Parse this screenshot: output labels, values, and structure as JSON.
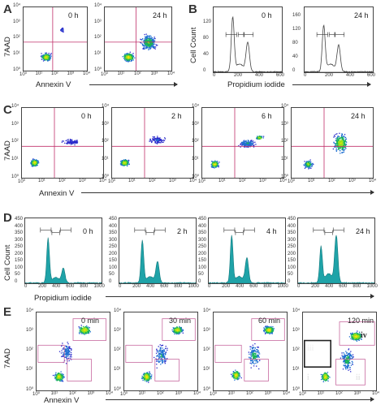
{
  "panels": {
    "A": {
      "letter": "A",
      "ylabel": "7AAD",
      "xlabel": "Annexin V",
      "plots": [
        {
          "time": "0 h"
        },
        {
          "time": "24 h"
        }
      ]
    },
    "B": {
      "letter": "B",
      "ylabel": "Cell Count",
      "xlabel": "Propidium iodide",
      "plots": [
        {
          "time": "0 h",
          "yticks": [
            "0",
            "40",
            "80",
            "120"
          ],
          "xticks": [
            "0",
            "200",
            "400",
            "600"
          ]
        },
        {
          "time": "24 h",
          "yticks": [
            "0",
            "40",
            "80",
            "120",
            "160"
          ],
          "xticks": [
            "0",
            "200",
            "400",
            "600"
          ]
        }
      ]
    },
    "C": {
      "letter": "C",
      "ylabel": "7AAD",
      "xlabel": "Annexin V",
      "plots": [
        {
          "time": "0 h"
        },
        {
          "time": "2 h"
        },
        {
          "time": "6 h"
        },
        {
          "time": "24 h"
        }
      ]
    },
    "D": {
      "letter": "D",
      "ylabel": "Cell Count",
      "xlabel": "Propidium iodide",
      "yticks": [
        "0",
        "50",
        "100",
        "150",
        "200",
        "250",
        "300",
        "350",
        "400",
        "450"
      ],
      "xticks": [
        "0",
        "200",
        "400",
        "600",
        "800",
        "1000"
      ],
      "plots": [
        {
          "time": "0 h"
        },
        {
          "time": "2 h"
        },
        {
          "time": "4 h"
        },
        {
          "time": "24 h"
        }
      ]
    },
    "E": {
      "letter": "E",
      "ylabel": "7AAD",
      "xlabel": "Annexin V",
      "plots": [
        {
          "time": "0 min"
        },
        {
          "time": "30 min"
        },
        {
          "time": "60 min"
        },
        {
          "time": "120 min"
        }
      ],
      "quadrants": [
        "i",
        "ii",
        "iii",
        "iv"
      ]
    }
  },
  "log_ticks": [
    "10⁰",
    "10¹",
    "10²",
    "10³",
    "10⁴"
  ],
  "colors": {
    "hist_fill": "#1fa3a8",
    "quad_line": "#c0306a",
    "density_hot": "#ffd200"
  }
}
